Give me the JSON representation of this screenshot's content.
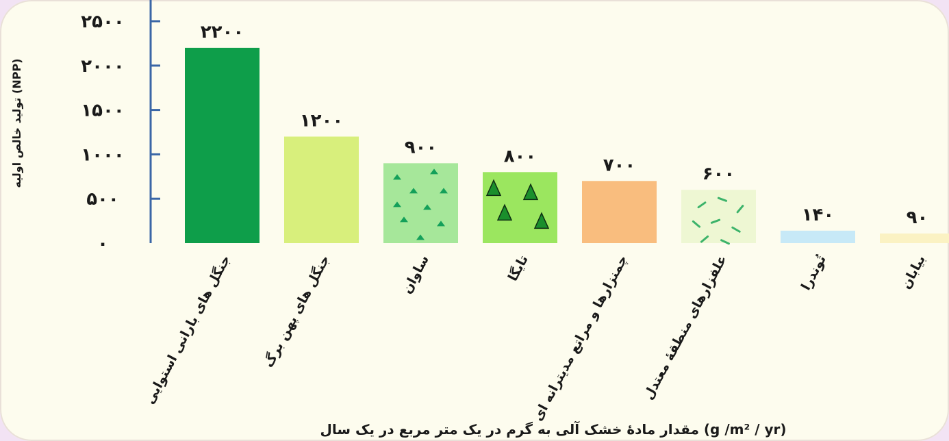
{
  "chart_data": {
    "type": "bar",
    "ylabel": "تولید خالص اولیه (NPP)",
    "xlabel": "مقدار مادهٔ خشک آلی به گرم در یک متر مربع در یک سال (g /m² / yr)",
    "ylim": [
      0,
      2500
    ],
    "yticks": [
      0,
      500,
      1000,
      1500,
      2000,
      2500
    ],
    "ytick_labels": [
      "۰",
      "۵۰۰",
      "۱۰۰۰",
      "۱۵۰۰",
      "۲۰۰۰",
      "۲۵۰۰"
    ],
    "categories": [
      "جنگل های بارانی استوایی",
      "جنگل های پهن برگ",
      "ساوان",
      "تایگا",
      "چمنزارها و مراتع مدیترانه ای",
      "علفزارهای منطقهٔ معتدل",
      "تُوندرا",
      "بیابان"
    ],
    "values": [
      2200,
      1200,
      900,
      800,
      700,
      600,
      140,
      90
    ],
    "value_labels": [
      "۲۲۰۰",
      "۱۲۰۰",
      "۹۰۰",
      "۸۰۰",
      "۷۰۰",
      "۶۰۰",
      "۱۴۰",
      "۹۰"
    ],
    "colors": [
      "#0e9e4a",
      "#d8ef7c",
      "#a6e79a",
      "#9be65f",
      "#f9bd7e",
      "#eef7d3",
      "#c7e9f7",
      "#fbf2c3"
    ],
    "grid": false
  }
}
